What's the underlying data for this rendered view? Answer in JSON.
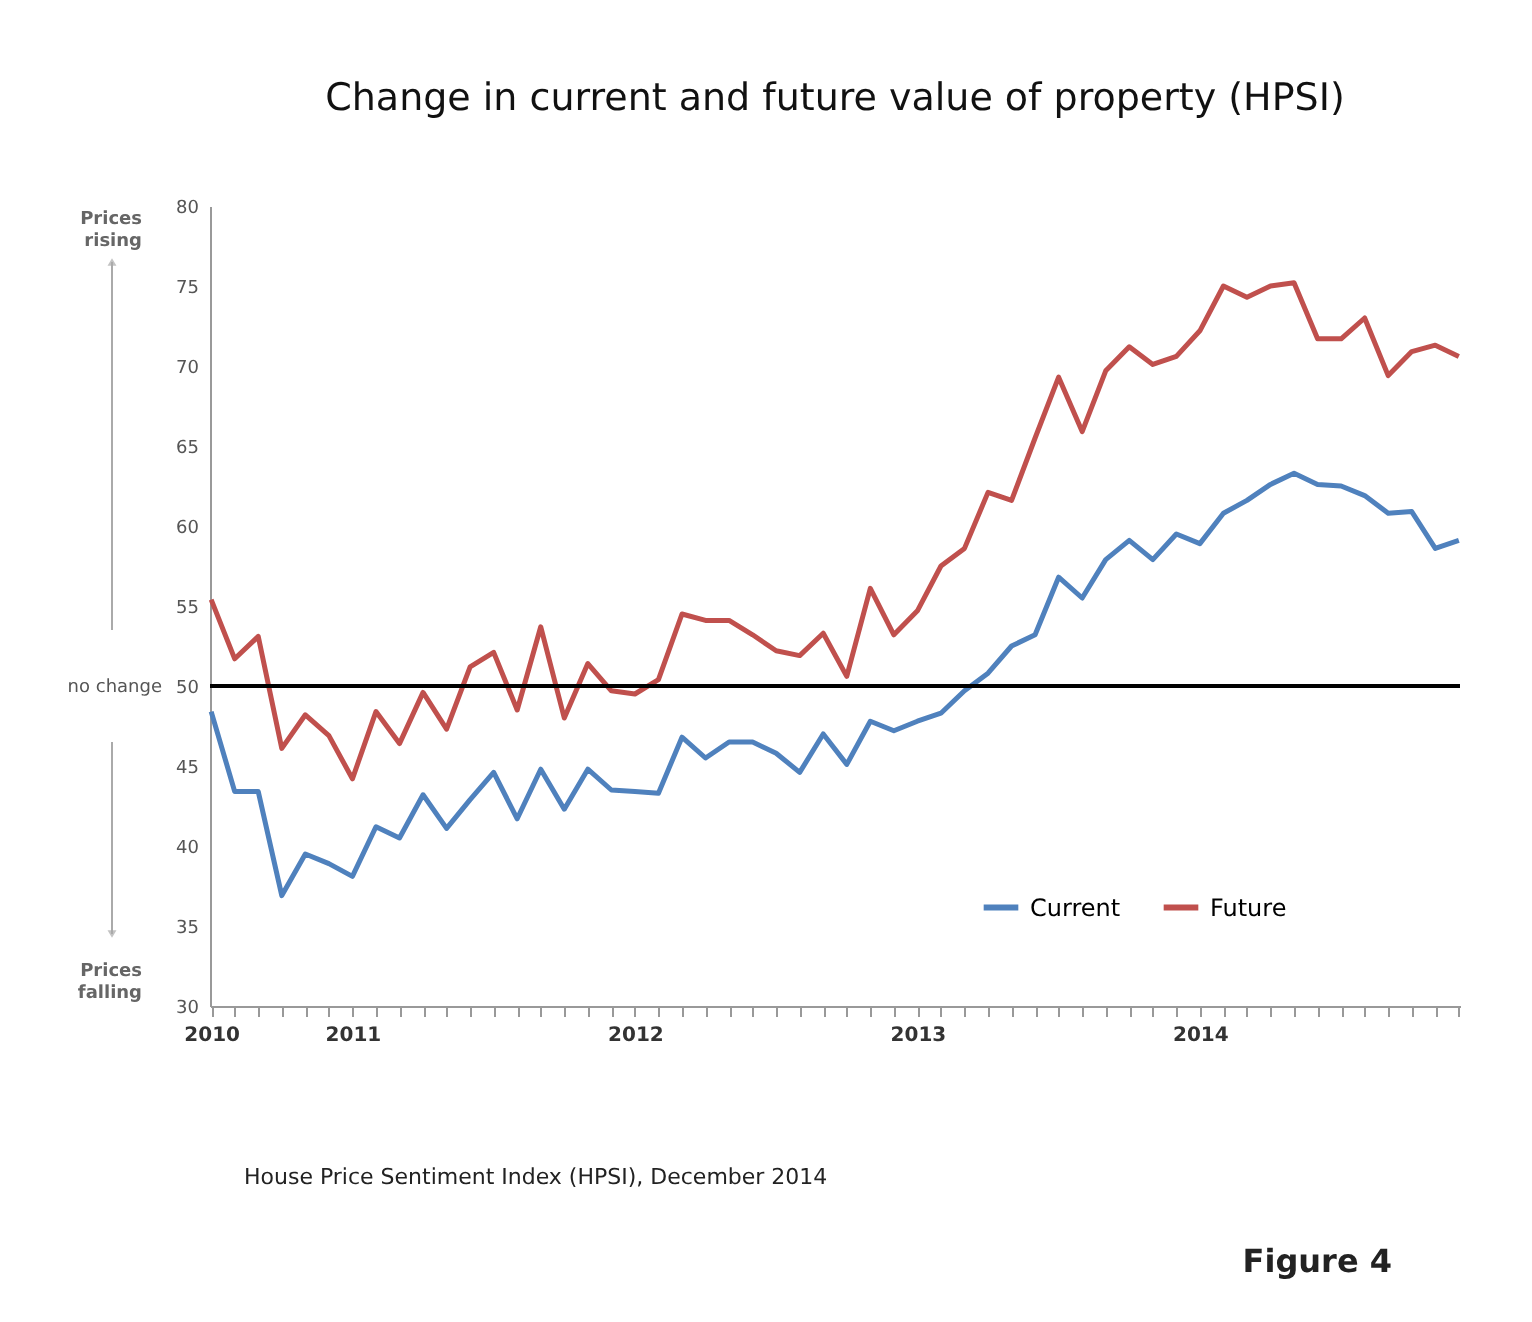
{
  "chart_data": {
    "type": "line",
    "title": "Change in current and future value of property (HPSI)",
    "categories": [
      "2010",
      null,
      null,
      null,
      null,
      null,
      "2011",
      null,
      null,
      null,
      null,
      null,
      null,
      null,
      null,
      null,
      null,
      null,
      "2012",
      null,
      null,
      null,
      null,
      null,
      null,
      null,
      null,
      null,
      null,
      null,
      "2013",
      null,
      null,
      null,
      null,
      null,
      null,
      null,
      null,
      null,
      null,
      null,
      "2014",
      null,
      null,
      null,
      null,
      null,
      null,
      null,
      null,
      null,
      null,
      null
    ],
    "series": [
      {
        "name": "Current",
        "color": "#4f81bd",
        "values": [
          48.4,
          43.4,
          43.4,
          36.9,
          39.5,
          38.9,
          38.1,
          41.2,
          40.5,
          43.2,
          41.1,
          42.9,
          44.6,
          41.7,
          44.8,
          42.3,
          44.8,
          43.5,
          43.4,
          43.3,
          46.8,
          45.5,
          46.5,
          46.5,
          45.8,
          44.6,
          47.0,
          45.1,
          47.8,
          47.2,
          47.8,
          48.3,
          49.7,
          50.8,
          52.5,
          53.2,
          56.8,
          55.5,
          57.9,
          59.1,
          57.9,
          59.5,
          58.9,
          60.8,
          61.6,
          62.6,
          63.3,
          62.6,
          62.5,
          61.9,
          60.8,
          60.9,
          58.6,
          59.1
        ]
      },
      {
        "name": "Future",
        "color": "#c0504d",
        "values": [
          55.4,
          51.7,
          53.1,
          46.1,
          48.2,
          46.9,
          44.2,
          48.4,
          46.4,
          49.6,
          47.3,
          51.2,
          52.1,
          48.5,
          53.7,
          48.0,
          51.4,
          49.7,
          49.5,
          50.4,
          54.5,
          54.1,
          54.1,
          53.2,
          52.2,
          51.9,
          53.3,
          50.6,
          56.1,
          53.2,
          54.7,
          57.5,
          58.6,
          62.1,
          61.6,
          65.5,
          69.3,
          65.9,
          69.7,
          71.2,
          70.1,
          70.6,
          72.2,
          75.0,
          74.3,
          75.0,
          75.2,
          71.7,
          71.7,
          73.0,
          69.4,
          70.9,
          71.3,
          70.6
        ]
      }
    ],
    "ylim": [
      30,
      80
    ],
    "yticks": [
      30,
      35,
      40,
      45,
      50,
      55,
      60,
      65,
      70,
      75,
      80
    ],
    "ref_lines": [
      {
        "axis": "y",
        "value": 50,
        "label": "no change",
        "color": "#000000"
      }
    ],
    "annotations": [
      "Prices rising",
      "Prices falling",
      "House Price Sentiment Index (HPSI), December 2014",
      "Figure 4"
    ],
    "legend": "bottom right",
    "grid": false,
    "marker": "none",
    "line_style": "solid"
  }
}
